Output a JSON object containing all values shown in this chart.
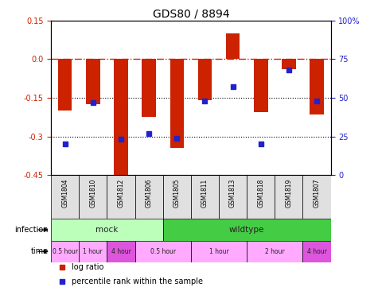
{
  "title": "GDS80 / 8894",
  "samples": [
    "GSM1804",
    "GSM1810",
    "GSM1812",
    "GSM1806",
    "GSM1805",
    "GSM1811",
    "GSM1813",
    "GSM1818",
    "GSM1819",
    "GSM1807"
  ],
  "log_ratio": [
    -0.2,
    -0.175,
    -0.46,
    -0.225,
    -0.345,
    -0.16,
    0.1,
    -0.205,
    -0.04,
    -0.215
  ],
  "percentile": [
    20,
    47,
    23,
    27,
    24,
    48,
    57,
    20,
    68,
    48
  ],
  "ylim": [
    -0.45,
    0.15
  ],
  "yticks_left": [
    -0.45,
    -0.3,
    -0.15,
    0.0,
    0.15
  ],
  "yticks_right": [
    0,
    25,
    50,
    75,
    100
  ],
  "bar_color": "#cc2200",
  "dot_color": "#2222cc",
  "hline_color": "#cc2200",
  "infection_groups": [
    {
      "label": "mock",
      "start": 0,
      "end": 3,
      "color": "#bbffbb"
    },
    {
      "label": "wildtype",
      "start": 4,
      "end": 9,
      "color": "#44cc44"
    }
  ],
  "time_boxes": [
    {
      "label": "0.5 hour",
      "start": 0,
      "end": 0,
      "color": "#ffaaff"
    },
    {
      "label": "1 hour",
      "start": 1,
      "end": 1,
      "color": "#ffaaff"
    },
    {
      "label": "4 hour",
      "start": 2,
      "end": 2,
      "color": "#dd55dd"
    },
    {
      "label": "0.5 hour",
      "start": 3,
      "end": 4,
      "color": "#ffaaff"
    },
    {
      "label": "1 hour",
      "start": 5,
      "end": 6,
      "color": "#ffaaff"
    },
    {
      "label": "2 hour",
      "start": 7,
      "end": 8,
      "color": "#ffaaff"
    },
    {
      "label": "4 hour",
      "start": 9,
      "end": 9,
      "color": "#dd55dd"
    }
  ],
  "legend_items": [
    {
      "label": "log ratio",
      "color": "#cc2200"
    },
    {
      "label": "percentile rank within the sample",
      "color": "#2222cc"
    }
  ],
  "infection_label": "infection",
  "time_label": "time",
  "bar_width": 0.5
}
